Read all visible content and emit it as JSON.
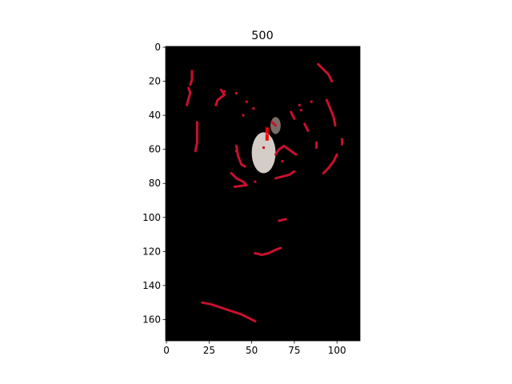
{
  "chart_data": {
    "type": "heatmap",
    "title": "500",
    "xlabel": "",
    "ylabel": "",
    "xlim": [
      -0.5,
      113.5
    ],
    "ylim": [
      172.5,
      -0.5
    ],
    "x_ticks": [
      0,
      25,
      50,
      75,
      100
    ],
    "y_ticks": [
      0,
      20,
      40,
      60,
      80,
      100,
      120,
      140,
      160
    ],
    "grid": false,
    "background_color": "#000000",
    "edge_color": "#c8102e",
    "marker_color": "#ff0000",
    "blob_color": "#e6ddd7",
    "edge_segments": [
      {
        "name": "seg-a",
        "points": [
          [
            15,
            14
          ],
          [
            15,
            19
          ],
          [
            14,
            22
          ]
        ]
      },
      {
        "name": "seg-b",
        "points": [
          [
            12,
            34
          ],
          [
            13,
            30
          ],
          [
            14,
            27
          ],
          [
            13,
            24
          ]
        ]
      },
      {
        "name": "seg-c",
        "points": [
          [
            18,
            44
          ],
          [
            18,
            50
          ],
          [
            18,
            56
          ],
          [
            17,
            61
          ]
        ]
      },
      {
        "name": "seg-d",
        "points": [
          [
            32,
            25
          ],
          [
            34,
            28
          ],
          [
            30,
            31
          ],
          [
            29,
            34
          ]
        ]
      },
      {
        "name": "seg-e",
        "points": [
          [
            41,
            58
          ],
          [
            42,
            64
          ],
          [
            44,
            69
          ],
          [
            46,
            70
          ]
        ]
      },
      {
        "name": "seg-f",
        "points": [
          [
            38,
            74
          ],
          [
            41,
            77
          ],
          [
            45,
            79
          ],
          [
            47,
            81
          ],
          [
            40,
            82
          ]
        ]
      },
      {
        "name": "seg-g",
        "points": [
          [
            89,
            10
          ],
          [
            92,
            13
          ],
          [
            95,
            16
          ],
          [
            97,
            20
          ]
        ]
      },
      {
        "name": "seg-h",
        "points": [
          [
            94,
            31
          ],
          [
            96,
            36
          ],
          [
            98,
            41
          ],
          [
            99,
            46
          ]
        ]
      },
      {
        "name": "seg-i",
        "points": [
          [
            100,
            63
          ],
          [
            98,
            67
          ],
          [
            95,
            71
          ],
          [
            92,
            74
          ]
        ]
      },
      {
        "name": "seg-j",
        "points": [
          [
            64,
            63
          ],
          [
            66,
            60
          ],
          [
            69,
            58
          ],
          [
            73,
            61
          ],
          [
            76,
            63
          ]
        ]
      },
      {
        "name": "seg-k",
        "points": [
          [
            64,
            77
          ],
          [
            68,
            76
          ],
          [
            72,
            75
          ],
          [
            75,
            73
          ]
        ]
      },
      {
        "name": "seg-l",
        "points": [
          [
            66,
            102
          ],
          [
            70,
            101
          ]
        ]
      },
      {
        "name": "seg-m",
        "points": [
          [
            52,
            121
          ],
          [
            56,
            122
          ],
          [
            60,
            121
          ],
          [
            64,
            119
          ],
          [
            67,
            118
          ]
        ]
      },
      {
        "name": "seg-n",
        "points": [
          [
            21,
            150
          ],
          [
            26,
            151
          ],
          [
            32,
            153
          ],
          [
            38,
            155
          ],
          [
            44,
            157
          ],
          [
            48,
            159
          ],
          [
            52,
            161
          ]
        ]
      },
      {
        "name": "seg-o",
        "points": [
          [
            73,
            38
          ],
          [
            75,
            42
          ]
        ]
      },
      {
        "name": "seg-p",
        "points": [
          [
            81,
            45
          ],
          [
            83,
            49
          ]
        ]
      },
      {
        "name": "seg-q",
        "points": [
          [
            88,
            56
          ],
          [
            88,
            59
          ]
        ]
      },
      {
        "name": "seg-r",
        "points": [
          [
            103,
            54
          ],
          [
            103,
            57
          ]
        ]
      },
      {
        "name": "seg-s",
        "points": [
          [
            62,
            44
          ],
          [
            64,
            46
          ]
        ]
      }
    ],
    "edge_dots": [
      [
        34,
        26
      ],
      [
        41,
        27
      ],
      [
        47,
        32
      ],
      [
        51,
        36
      ],
      [
        45,
        40
      ],
      [
        41,
        61
      ],
      [
        78,
        34
      ],
      [
        79,
        37
      ],
      [
        85,
        32
      ],
      [
        68,
        67
      ],
      [
        57,
        59
      ],
      [
        52,
        79
      ]
    ],
    "bright_blob": {
      "cx": 57,
      "cy": 62,
      "rx": 7,
      "ry": 12
    },
    "gray_cluster": {
      "cx": 64,
      "cy": 46,
      "rx": 3,
      "ry": 5
    },
    "markers": [
      [
        59,
        49
      ],
      [
        59,
        53
      ]
    ]
  }
}
